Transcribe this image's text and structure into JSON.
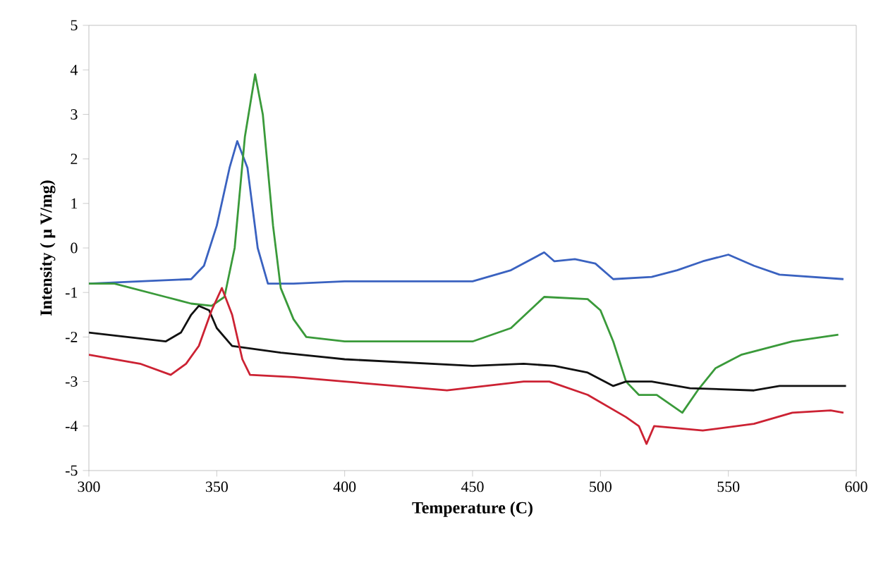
{
  "chart_data": {
    "type": "line",
    "xlabel": "Temperature (C)",
    "ylabel": "Intensity ( μ V/mg)",
    "xlim": [
      300,
      600
    ],
    "ylim": [
      -5,
      5
    ],
    "xticks": [
      300,
      350,
      400,
      450,
      500,
      550,
      600
    ],
    "yticks": [
      -5,
      -4,
      -3,
      -2,
      -1,
      0,
      1,
      2,
      3,
      4,
      5
    ],
    "grid": false,
    "marker": "none",
    "line_style": "solid",
    "series": [
      {
        "color": "#3a62c0",
        "x": [
          300,
          320,
          340,
          345,
          350,
          355,
          358,
          362,
          366,
          370,
          380,
          400,
          450,
          465,
          478,
          482,
          490,
          498,
          505,
          520,
          530,
          540,
          550,
          560,
          570,
          595
        ],
        "values": [
          -0.8,
          -0.75,
          -0.7,
          -0.4,
          0.5,
          1.8,
          2.4,
          1.8,
          0.0,
          -0.8,
          -0.8,
          -0.75,
          -0.75,
          -0.5,
          -0.1,
          -0.3,
          -0.25,
          -0.35,
          -0.7,
          -0.65,
          -0.5,
          -0.3,
          -0.15,
          -0.4,
          -0.6,
          -0.7
        ]
      },
      {
        "color": "#3a9a3a",
        "x": [
          300,
          310,
          330,
          340,
          348,
          353,
          357,
          361,
          365,
          368,
          372,
          375,
          380,
          385,
          400,
          450,
          465,
          478,
          495,
          500,
          505,
          510,
          515,
          522,
          532,
          538,
          545,
          555,
          575,
          593
        ],
        "values": [
          -0.8,
          -0.8,
          -1.1,
          -1.25,
          -1.3,
          -1.1,
          0.0,
          2.5,
          3.9,
          3.0,
          0.5,
          -0.9,
          -1.6,
          -2.0,
          -2.1,
          -2.1,
          -1.8,
          -1.1,
          -1.15,
          -1.4,
          -2.1,
          -3.0,
          -3.3,
          -3.3,
          -3.7,
          -3.2,
          -2.7,
          -2.4,
          -2.1,
          -1.95
        ]
      },
      {
        "color": "#111111",
        "x": [
          300,
          315,
          330,
          336,
          340,
          343,
          347,
          350,
          356,
          375,
          400,
          450,
          470,
          482,
          495,
          505,
          510,
          520,
          535,
          560,
          570,
          596
        ],
        "values": [
          -1.9,
          -2.0,
          -2.1,
          -1.9,
          -1.5,
          -1.3,
          -1.4,
          -1.8,
          -2.2,
          -2.35,
          -2.5,
          -2.65,
          -2.6,
          -2.65,
          -2.8,
          -3.1,
          -3.0,
          -3.0,
          -3.15,
          -3.2,
          -3.1,
          -3.1
        ]
      },
      {
        "color": "#cc2233",
        "x": [
          300,
          320,
          332,
          338,
          343,
          348,
          352,
          356,
          360,
          363,
          380,
          400,
          440,
          470,
          480,
          495,
          510,
          515,
          518,
          521,
          540,
          560,
          575,
          590,
          595
        ],
        "values": [
          -2.4,
          -2.6,
          -2.85,
          -2.6,
          -2.2,
          -1.4,
          -0.9,
          -1.5,
          -2.5,
          -2.85,
          -2.9,
          -3.0,
          -3.2,
          -3.0,
          -3.0,
          -3.3,
          -3.8,
          -4.0,
          -4.4,
          -4.0,
          -4.1,
          -3.95,
          -3.7,
          -3.65,
          -3.7
        ]
      }
    ]
  }
}
